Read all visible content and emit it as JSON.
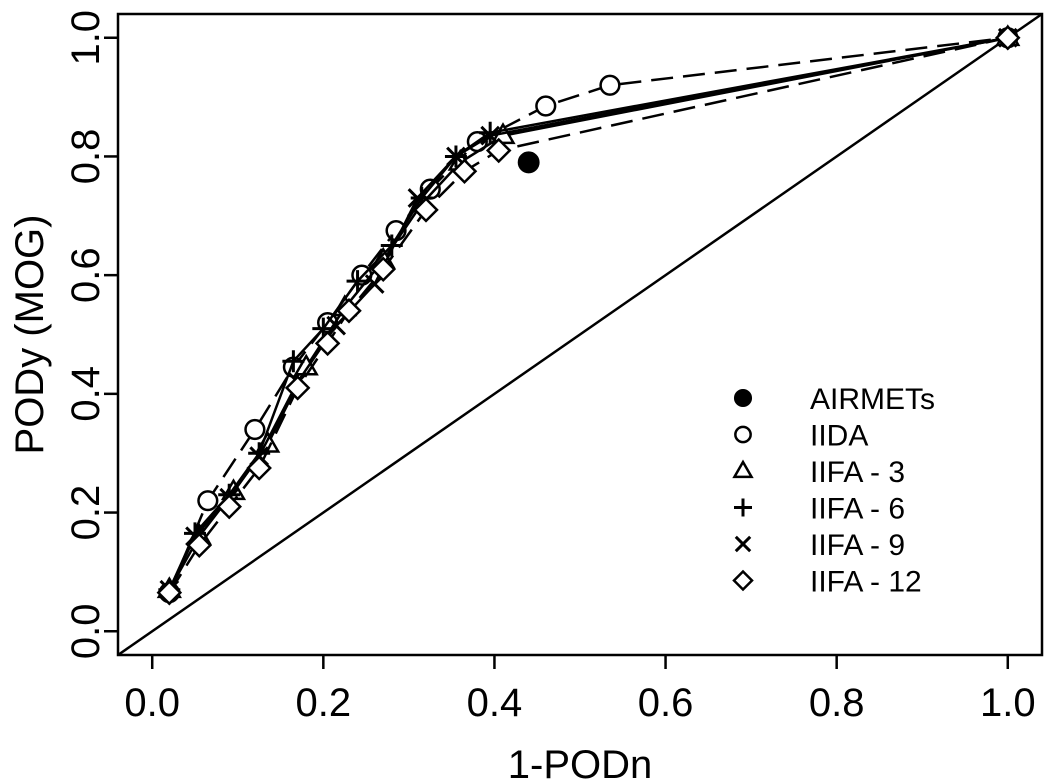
{
  "chart_data": {
    "type": "line",
    "title": "",
    "xlabel": "1-PODn",
    "ylabel": "PODy (MOG)",
    "xlim": [
      -0.04,
      1.04
    ],
    "ylim": [
      -0.04,
      1.04
    ],
    "x_ticks": [
      0.0,
      0.2,
      0.4,
      0.6,
      0.8,
      1.0
    ],
    "x_tick_labels": [
      "0.0",
      "0.2",
      "0.4",
      "0.6",
      "0.8",
      "1.0"
    ],
    "y_ticks": [
      0.0,
      0.2,
      0.4,
      0.6,
      0.8,
      1.0
    ],
    "y_tick_labels": [
      "0.0",
      "0.2",
      "0.4",
      "0.6",
      "0.8",
      "1.0"
    ],
    "grid": false,
    "legend_position": "bottom-right",
    "diagonal_reference": true,
    "series": [
      {
        "name": "AIRMETs",
        "marker": "filled-circle",
        "line": "none",
        "x": [
          0.44
        ],
        "y": [
          0.79
        ]
      },
      {
        "name": "IIDA",
        "marker": "circle",
        "line": "dashed",
        "x": [
          0.02,
          0.065,
          0.12,
          0.165,
          0.205,
          0.245,
          0.285,
          0.325,
          0.38,
          0.46,
          0.535,
          1.0
        ],
        "y": [
          0.065,
          0.22,
          0.34,
          0.445,
          0.52,
          0.6,
          0.675,
          0.745,
          0.825,
          0.885,
          0.92,
          1.0
        ]
      },
      {
        "name": "IIFA - 3",
        "marker": "triangle",
        "line": "solid",
        "x": [
          0.02,
          0.055,
          0.095,
          0.135,
          0.18,
          0.225,
          0.27,
          0.315,
          0.36,
          0.41,
          1.0
        ],
        "y": [
          0.07,
          0.16,
          0.235,
          0.315,
          0.445,
          0.545,
          0.625,
          0.72,
          0.79,
          0.835,
          1.0
        ]
      },
      {
        "name": "IIFA - 6",
        "marker": "plus",
        "line": "solid",
        "x": [
          0.02,
          0.05,
          0.09,
          0.125,
          0.165,
          0.2,
          0.24,
          0.28,
          0.315,
          0.355,
          0.395,
          1.0
        ],
        "y": [
          0.07,
          0.165,
          0.23,
          0.3,
          0.455,
          0.51,
          0.59,
          0.65,
          0.73,
          0.8,
          0.84,
          1.0
        ]
      },
      {
        "name": "IIFA - 9",
        "marker": "x",
        "line": "solid",
        "x": [
          0.02,
          0.05,
          0.09,
          0.125,
          0.17,
          0.215,
          0.26,
          0.31,
          0.355,
          0.395,
          1.0
        ],
        "y": [
          0.07,
          0.16,
          0.225,
          0.295,
          0.42,
          0.515,
          0.585,
          0.73,
          0.8,
          0.835,
          1.0
        ]
      },
      {
        "name": "IIFA - 12",
        "marker": "diamond",
        "line": "dashed",
        "x": [
          0.02,
          0.055,
          0.09,
          0.125,
          0.17,
          0.205,
          0.23,
          0.27,
          0.32,
          0.365,
          0.405,
          1.0
        ],
        "y": [
          0.065,
          0.145,
          0.21,
          0.275,
          0.41,
          0.485,
          0.54,
          0.61,
          0.71,
          0.775,
          0.81,
          1.0
        ]
      }
    ]
  }
}
